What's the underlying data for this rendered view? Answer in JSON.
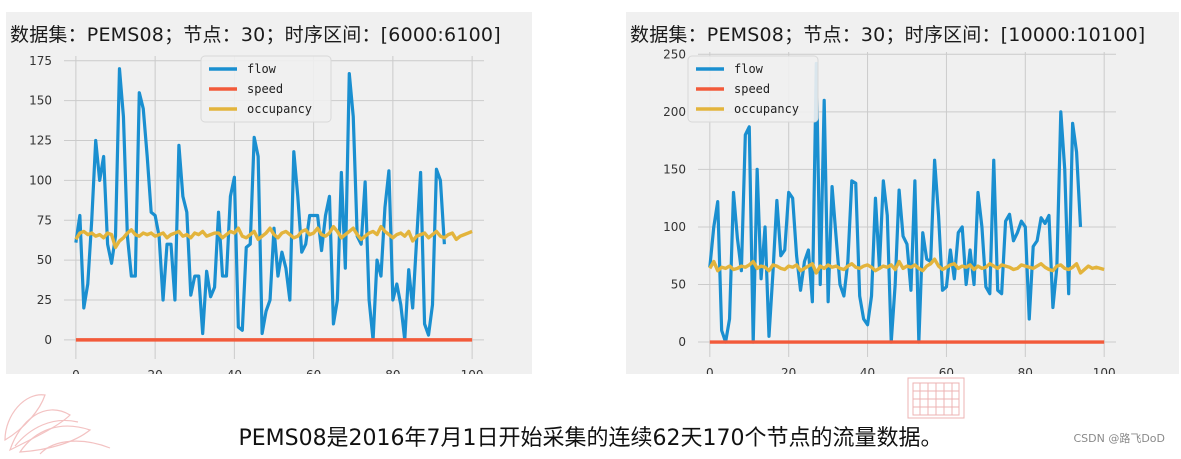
{
  "chart_data": [
    {
      "type": "line",
      "title": "数据集：PEMS08；节点：30；时序区间：[6000:6100]",
      "xlabel": "",
      "ylabel": "",
      "xlim": [
        -3,
        103
      ],
      "ylim": [
        -12,
        178
      ],
      "xticks": [
        0,
        20,
        40,
        60,
        80,
        100
      ],
      "yticks": [
        0,
        25,
        50,
        75,
        100,
        125,
        150,
        175
      ],
      "grid": true,
      "legend_position": "top-center",
      "series": [
        {
          "name": "flow",
          "color": "#1a8fd0",
          "values": [
            61,
            78,
            20,
            35,
            75,
            125,
            100,
            115,
            60,
            48,
            65,
            170,
            140,
            65,
            40,
            40,
            155,
            145,
            115,
            80,
            78,
            65,
            25,
            60,
            60,
            25,
            122,
            90,
            80,
            28,
            40,
            40,
            4,
            43,
            27,
            33,
            80,
            40,
            40,
            90,
            102,
            8,
            6,
            58,
            60,
            127,
            115,
            4,
            18,
            25,
            70,
            40,
            55,
            45,
            25,
            118,
            90,
            55,
            60,
            78,
            78,
            78,
            56,
            78,
            90,
            10,
            25,
            105,
            45,
            167,
            140,
            65,
            60,
            99,
            25,
            0,
            50,
            40,
            83,
            106,
            25,
            35,
            22,
            0,
            44,
            20,
            63,
            105,
            10,
            3,
            22,
            107,
            100,
            60
          ]
        },
        {
          "name": "speed",
          "color": "#f25a3a",
          "values": [
            0,
            0,
            0,
            0,
            0,
            0,
            0,
            0,
            0,
            0,
            0,
            0,
            0,
            0,
            0,
            0,
            0,
            0,
            0,
            0,
            0,
            0,
            0,
            0,
            0,
            0,
            0,
            0,
            0,
            0,
            0,
            0,
            0,
            0,
            0,
            0,
            0,
            0,
            0,
            0,
            0,
            0,
            0,
            0,
            0,
            0,
            0,
            0,
            0,
            0,
            0,
            0,
            0,
            0,
            0,
            0,
            0,
            0,
            0,
            0,
            0,
            0,
            0,
            0,
            0,
            0,
            0,
            0,
            0,
            0,
            0,
            0,
            0,
            0,
            0,
            0,
            0,
            0,
            0,
            0,
            0,
            0,
            0,
            0,
            0,
            0,
            0,
            0,
            0,
            0,
            0,
            0,
            0,
            0,
            0,
            0,
            0,
            0,
            0,
            0,
            0
          ]
        },
        {
          "name": "occupancy",
          "color": "#e3b43c",
          "values": [
            63,
            67,
            68,
            66,
            67,
            65,
            66,
            64,
            67,
            66,
            58,
            62,
            64,
            67,
            69,
            66,
            65,
            67,
            66,
            67,
            65,
            66,
            67,
            64,
            66,
            67,
            68,
            65,
            66,
            64,
            67,
            66,
            68,
            65,
            66,
            67,
            67,
            64,
            66,
            68,
            67,
            70,
            65,
            64,
            66,
            68,
            63,
            65,
            67,
            70,
            66,
            64,
            67,
            68,
            66,
            64,
            65,
            68,
            69,
            66,
            67,
            70,
            66,
            65,
            67,
            71,
            68,
            64,
            66,
            68,
            70,
            66,
            63,
            65,
            67,
            68,
            66,
            71,
            68,
            66,
            64,
            66,
            67,
            65,
            68,
            62,
            65,
            66,
            67,
            64,
            66,
            68,
            65,
            64,
            66,
            67,
            63,
            65,
            66,
            67,
            68
          ]
        }
      ]
    },
    {
      "type": "line",
      "title": "数据集：PEMS08；节点：30；时序区间：[10000:10100]",
      "xlabel": "",
      "ylabel": "",
      "xlim": [
        -3,
        103
      ],
      "ylim": [
        -13,
        252
      ],
      "xticks": [
        0,
        20,
        40,
        60,
        80,
        100
      ],
      "yticks": [
        0,
        50,
        100,
        150,
        200,
        250
      ],
      "grid": true,
      "legend_position": "top-left",
      "series": [
        {
          "name": "flow",
          "color": "#1a8fd0",
          "values": [
            65,
            100,
            122,
            10,
            0,
            20,
            130,
            90,
            62,
            180,
            187,
            0,
            150,
            55,
            100,
            5,
            60,
            123,
            75,
            80,
            130,
            125,
            75,
            45,
            70,
            80,
            35,
            242,
            50,
            210,
            35,
            135,
            92,
            50,
            40,
            70,
            140,
            138,
            40,
            20,
            15,
            40,
            125,
            65,
            140,
            110,
            0,
            50,
            132,
            92,
            85,
            45,
            140,
            0,
            95,
            72,
            70,
            158,
            110,
            45,
            48,
            80,
            55,
            95,
            100,
            50,
            80,
            50,
            130,
            100,
            48,
            42,
            158,
            45,
            42,
            105,
            111,
            88,
            95,
            105,
            100,
            20,
            83,
            88,
            108,
            103,
            110,
            30,
            65,
            200,
            150,
            42,
            190,
            165,
            100
          ]
        },
        {
          "name": "speed",
          "color": "#f25a3a",
          "values": [
            0,
            0,
            0,
            0,
            0,
            0,
            0,
            0,
            0,
            0,
            0,
            0,
            0,
            0,
            0,
            0,
            0,
            0,
            0,
            0,
            0,
            0,
            0,
            0,
            0,
            0,
            0,
            0,
            0,
            0,
            0,
            0,
            0,
            0,
            0,
            0,
            0,
            0,
            0,
            0,
            0,
            0,
            0,
            0,
            0,
            0,
            0,
            0,
            0,
            0,
            0,
            0,
            0,
            0,
            0,
            0,
            0,
            0,
            0,
            0,
            0,
            0,
            0,
            0,
            0,
            0,
            0,
            0,
            0,
            0,
            0,
            0,
            0,
            0,
            0,
            0,
            0,
            0,
            0,
            0,
            0,
            0,
            0,
            0,
            0,
            0,
            0,
            0,
            0,
            0,
            0,
            0,
            0,
            0,
            0,
            0,
            0,
            0,
            0,
            0,
            0
          ]
        },
        {
          "name": "occupancy",
          "color": "#e3b43c",
          "values": [
            64,
            70,
            62,
            65,
            64,
            66,
            63,
            64,
            66,
            65,
            67,
            70,
            64,
            66,
            65,
            62,
            67,
            66,
            64,
            63,
            66,
            65,
            67,
            62,
            64,
            66,
            68,
            60,
            66,
            64,
            67,
            65,
            66,
            64,
            63,
            66,
            68,
            65,
            64,
            66,
            67,
            65,
            62,
            64,
            66,
            65,
            67,
            63,
            70,
            64,
            66,
            65,
            67,
            64,
            62,
            66,
            68,
            72,
            66,
            63,
            65,
            67,
            68,
            64,
            66,
            65,
            67,
            63,
            66,
            64,
            65,
            68,
            66,
            64,
            67,
            66,
            65,
            63,
            64,
            67,
            66,
            65,
            64,
            66,
            68,
            65,
            63,
            62,
            66,
            67,
            64,
            63,
            65,
            68,
            60,
            63,
            66,
            64,
            65,
            64,
            63
          ]
        }
      ]
    }
  ],
  "caption": "PEMS08是2016年7月1日开始采集的连续62天170个节点的流量数据。",
  "watermark": "CSDN @路飞DoD"
}
